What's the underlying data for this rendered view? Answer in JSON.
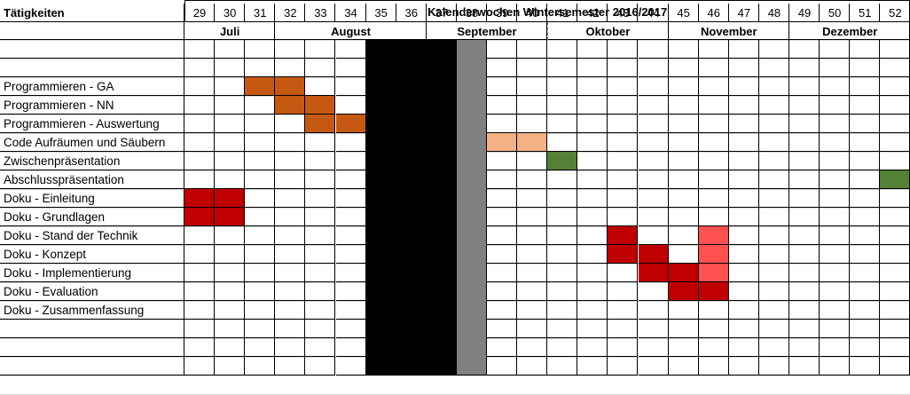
{
  "title": "Kalenderwochen Wintersemester 2016/2017",
  "header_label": "Tätigkeiten",
  "weeks": [
    "29",
    "30",
    "31",
    "32",
    "33",
    "34",
    "35",
    "36",
    "37",
    "38",
    "39",
    "40",
    "41",
    "42",
    "43",
    "44",
    "45",
    "46",
    "47",
    "48",
    "49",
    "50",
    "51",
    "52"
  ],
  "months": [
    {
      "name": "Juli",
      "start": 0,
      "span": 3
    },
    {
      "name": "August",
      "start": 3,
      "span": 5
    },
    {
      "name": "September",
      "start": 8,
      "span": 4
    },
    {
      "name": "Oktober",
      "start": 12,
      "span": 4
    },
    {
      "name": "November",
      "start": 16,
      "span": 4
    },
    {
      "name": "Dezember",
      "start": 20,
      "span": 4
    }
  ],
  "tasks": [
    "",
    "Programmieren - GA",
    "Programmieren - NN",
    "Programmieren - Auswertung",
    "Code Aufräumen und Säubern",
    "Zwischenpräsentation",
    "Abschlusspräsentation",
    "Doku - Einleitung",
    "Doku - Grundlagen",
    "Doku  - Stand der Technik",
    "Doku - Konzept",
    "Doku - Implementierung",
    "Doku - Evaluation",
    "Doku - Zusammenfassung",
    "",
    "",
    ""
  ],
  "colors": {
    "orange": "#c65911",
    "light_orange": "#f4b183",
    "green": "#538135",
    "dark_red": "#c00000",
    "light_red": "#ff5050",
    "black": "#000000",
    "gray": "#808080"
  },
  "blocked_columns": [
    {
      "col_start": 6,
      "col_end": 8,
      "color_key": "black"
    },
    {
      "col_start": 9,
      "col_end": 9,
      "color_key": "gray"
    }
  ],
  "fills": [
    {
      "row": 1,
      "col": 2,
      "color_key": "orange"
    },
    {
      "row": 1,
      "col": 3,
      "color_key": "orange"
    },
    {
      "row": 2,
      "col": 3,
      "color_key": "orange"
    },
    {
      "row": 2,
      "col": 4,
      "color_key": "orange"
    },
    {
      "row": 3,
      "col": 4,
      "color_key": "orange"
    },
    {
      "row": 3,
      "col": 5,
      "color_key": "orange"
    },
    {
      "row": 4,
      "col": 10,
      "color_key": "light_orange"
    },
    {
      "row": 4,
      "col": 11,
      "color_key": "light_orange"
    },
    {
      "row": 5,
      "col": 12,
      "color_key": "green"
    },
    {
      "row": 6,
      "col": 23,
      "color_key": "green"
    },
    {
      "row": 7,
      "col": 0,
      "color_key": "dark_red"
    },
    {
      "row": 7,
      "col": 1,
      "color_key": "dark_red"
    },
    {
      "row": 8,
      "col": 0,
      "color_key": "dark_red"
    },
    {
      "row": 8,
      "col": 1,
      "color_key": "dark_red"
    },
    {
      "row": 9,
      "col": 14,
      "color_key": "dark_red"
    },
    {
      "row": 9,
      "col": 17,
      "color_key": "light_red"
    },
    {
      "row": 10,
      "col": 14,
      "color_key": "dark_red"
    },
    {
      "row": 10,
      "col": 15,
      "color_key": "dark_red"
    },
    {
      "row": 10,
      "col": 17,
      "color_key": "light_red"
    },
    {
      "row": 11,
      "col": 15,
      "color_key": "dark_red"
    },
    {
      "row": 11,
      "col": 16,
      "color_key": "dark_red"
    },
    {
      "row": 11,
      "col": 17,
      "color_key": "light_red"
    },
    {
      "row": 12,
      "col": 16,
      "color_key": "dark_red"
    },
    {
      "row": 12,
      "col": 17,
      "color_key": "dark_red"
    }
  ]
}
